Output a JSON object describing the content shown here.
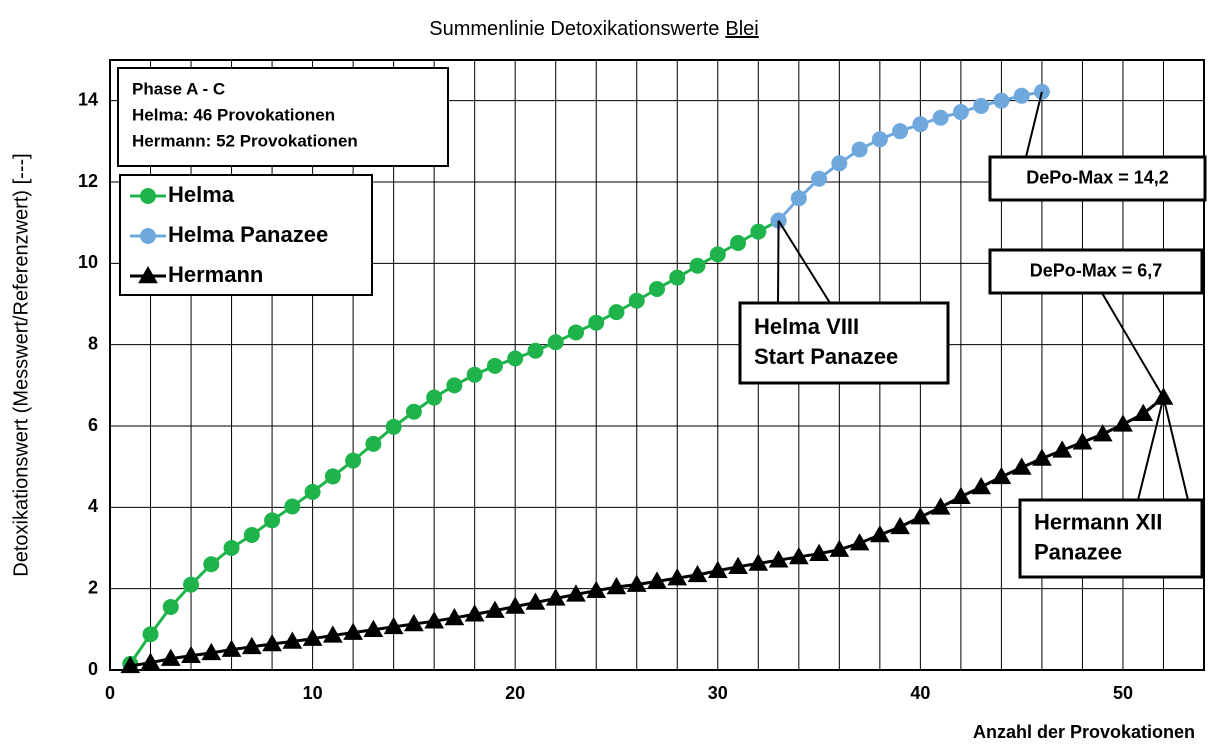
{
  "chart_data": {
    "type": "line",
    "title": "Summenlinie Detoxikationswerte",
    "title_underlined": "Blei",
    "xlabel": "Anzahl der Provokationen",
    "ylabel": "Detoxikationswert (Messwert/Referenzwert) [---]",
    "xlim": [
      0,
      54
    ],
    "xticks": [
      0,
      10,
      20,
      30,
      40,
      50
    ],
    "xminor": 2,
    "ylim": [
      0,
      15
    ],
    "yticks": [
      0,
      2,
      4,
      6,
      8,
      10,
      12,
      14
    ],
    "grid": true,
    "info_box": [
      "Phase A - C",
      "Helma: 46 Provokationen",
      "Hermann: 52 Provokationen"
    ],
    "series": [
      {
        "name": "Helma",
        "color": "#1fb44b",
        "marker": "circle",
        "x": [
          1,
          2,
          3,
          4,
          5,
          6,
          7,
          8,
          9,
          10,
          11,
          12,
          13,
          14,
          15,
          16,
          17,
          18,
          19,
          20,
          21,
          22,
          23,
          24,
          25,
          26,
          27,
          28,
          29,
          30,
          31,
          32,
          33
        ],
        "values": [
          0.15,
          0.88,
          1.55,
          2.1,
          2.6,
          3.0,
          3.32,
          3.68,
          4.02,
          4.38,
          4.76,
          5.15,
          5.56,
          5.98,
          6.35,
          6.7,
          7.0,
          7.26,
          7.48,
          7.66,
          7.85,
          8.06,
          8.3,
          8.54,
          8.8,
          9.08,
          9.37,
          9.65,
          9.94,
          10.22,
          10.5,
          10.78,
          11.05
        ]
      },
      {
        "name": "Helma Panazee",
        "color": "#6fa8dc",
        "marker": "circle",
        "x": [
          33,
          34,
          35,
          36,
          37,
          38,
          39,
          40,
          41,
          42,
          43,
          44,
          45,
          46
        ],
        "values": [
          11.05,
          11.6,
          12.08,
          12.46,
          12.8,
          13.05,
          13.25,
          13.42,
          13.58,
          13.72,
          13.87,
          14.0,
          14.12,
          14.22
        ]
      },
      {
        "name": "Hermann",
        "color": "#000000",
        "marker": "triangle",
        "x": [
          1,
          2,
          3,
          4,
          5,
          6,
          7,
          8,
          9,
          10,
          11,
          12,
          13,
          14,
          15,
          16,
          17,
          18,
          19,
          20,
          21,
          22,
          23,
          24,
          25,
          26,
          27,
          28,
          29,
          30,
          31,
          32,
          33,
          34,
          35,
          36,
          37,
          38,
          39,
          40,
          41,
          42,
          43,
          44,
          45,
          46,
          47,
          48,
          49,
          50,
          51,
          52
        ],
        "values": [
          0.1,
          0.18,
          0.28,
          0.35,
          0.42,
          0.5,
          0.57,
          0.64,
          0.7,
          0.77,
          0.85,
          0.92,
          0.99,
          1.06,
          1.13,
          1.2,
          1.28,
          1.37,
          1.46,
          1.56,
          1.66,
          1.76,
          1.86,
          1.95,
          2.04,
          2.1,
          2.18,
          2.26,
          2.34,
          2.44,
          2.54,
          2.62,
          2.7,
          2.78,
          2.86,
          2.96,
          3.12,
          3.32,
          3.52,
          3.76,
          4.0,
          4.26,
          4.5,
          4.75,
          4.98,
          5.2,
          5.4,
          5.6,
          5.8,
          6.04,
          6.3,
          6.7
        ]
      }
    ],
    "annotations": [
      {
        "lines": [
          "DePo-Max = 14,2"
        ]
      },
      {
        "lines": [
          "Helma VIII",
          "Start Panazee"
        ]
      },
      {
        "lines": [
          "DePo-Max = 6,7"
        ]
      },
      {
        "lines": [
          "Hermann XII",
          "Panazee"
        ]
      }
    ]
  }
}
